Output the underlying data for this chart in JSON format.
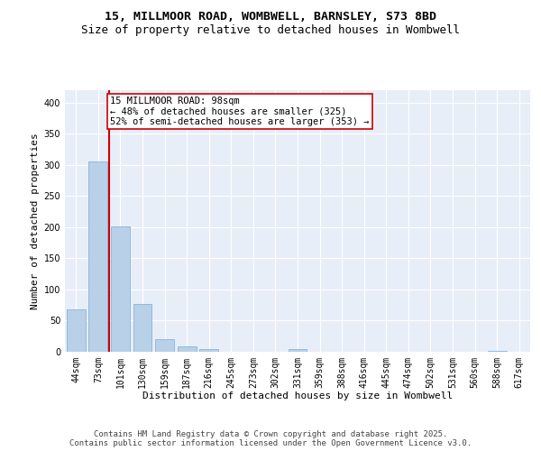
{
  "title_line1": "15, MILLMOOR ROAD, WOMBWELL, BARNSLEY, S73 8BD",
  "title_line2": "Size of property relative to detached houses in Wombwell",
  "xlabel": "Distribution of detached houses by size in Wombwell",
  "ylabel": "Number of detached properties",
  "categories": [
    "44sqm",
    "73sqm",
    "101sqm",
    "130sqm",
    "159sqm",
    "187sqm",
    "216sqm",
    "245sqm",
    "273sqm",
    "302sqm",
    "331sqm",
    "359sqm",
    "388sqm",
    "416sqm",
    "445sqm",
    "474sqm",
    "502sqm",
    "531sqm",
    "560sqm",
    "588sqm",
    "617sqm"
  ],
  "values": [
    68,
    305,
    202,
    77,
    20,
    8,
    4,
    0,
    0,
    0,
    4,
    0,
    0,
    0,
    0,
    0,
    0,
    0,
    0,
    2,
    0
  ],
  "bar_color": "#b8d0e8",
  "bar_edge_color": "#7aadd4",
  "vline_color": "#cc0000",
  "annotation_text": "15 MILLMOOR ROAD: 98sqm\n← 48% of detached houses are smaller (325)\n52% of semi-detached houses are larger (353) →",
  "annotation_box_color": "#cc0000",
  "ylim": [
    0,
    420
  ],
  "yticks": [
    0,
    50,
    100,
    150,
    200,
    250,
    300,
    350,
    400
  ],
  "bg_color": "#e8eef8",
  "footer_text": "Contains HM Land Registry data © Crown copyright and database right 2025.\nContains public sector information licensed under the Open Government Licence v3.0.",
  "title_fontsize": 9.5,
  "subtitle_fontsize": 9,
  "axis_label_fontsize": 8,
  "tick_fontsize": 7,
  "annotation_fontsize": 7.5,
  "footer_fontsize": 6.5
}
